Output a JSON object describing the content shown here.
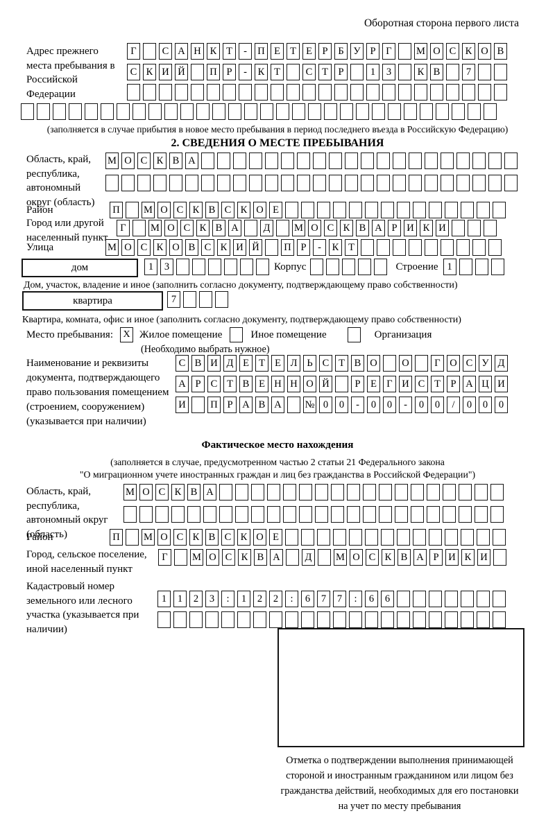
{
  "header": {
    "page_side_note": "Оборотная сторона первого листа"
  },
  "prev_address": {
    "label": "Адрес прежнего места пребывания в Российской Федерации",
    "rows": [
      [
        "Г",
        "",
        "С",
        "А",
        "Н",
        "К",
        "Т",
        "-",
        "П",
        "Е",
        "Т",
        "Е",
        "Р",
        "Б",
        "У",
        "Р",
        "Г",
        "",
        "М",
        "О",
        "С",
        "К",
        "О",
        "В"
      ],
      [
        "С",
        "К",
        "И",
        "Й",
        "",
        "П",
        "Р",
        "-",
        "К",
        "Т",
        "",
        "С",
        "Т",
        "Р",
        "",
        "1",
        "3",
        "",
        "К",
        "В",
        "",
        "7",
        "",
        ""
      ],
      [
        "",
        "",
        "",
        "",
        "",
        "",
        "",
        "",
        "",
        "",
        "",
        "",
        "",
        "",
        "",
        "",
        "",
        "",
        "",
        "",
        "",
        "",
        "",
        ""
      ],
      [
        "",
        "",
        "",
        "",
        "",
        "",
        "",
        "",
        "",
        "",
        "",
        "",
        "",
        "",
        "",
        "",
        "",
        "",
        "",
        "",
        "",
        "",
        "",
        "",
        "",
        "",
        "",
        "",
        "",
        ""
      ]
    ],
    "note": "(заполняется в случае прибытия в новое место пребывания в период последнего въезда в Российскую Федерацию)"
  },
  "section2": {
    "title": "2. СВЕДЕНИЯ О МЕСТЕ ПРЕБЫВАНИЯ",
    "region": {
      "label": "Область, край, республика, автономный округ (область)",
      "rows": [
        [
          "М",
          "О",
          "С",
          "К",
          "В",
          "А",
          "",
          "",
          "",
          "",
          "",
          "",
          "",
          "",
          "",
          "",
          "",
          "",
          "",
          "",
          "",
          "",
          "",
          "",
          "",
          ""
        ],
        [
          "",
          "",
          "",
          "",
          "",
          "",
          "",
          "",
          "",
          "",
          "",
          "",
          "",
          "",
          "",
          "",
          "",
          "",
          "",
          "",
          "",
          "",
          "",
          "",
          "",
          ""
        ]
      ]
    },
    "district": {
      "label": "Район",
      "cells": [
        "П",
        "",
        "М",
        "О",
        "С",
        "К",
        "В",
        "С",
        "К",
        "О",
        "Е",
        "",
        "",
        "",
        "",
        "",
        "",
        "",
        "",
        "",
        "",
        "",
        "",
        "",
        ""
      ]
    },
    "city": {
      "label": "Город или другой населенный пункт",
      "cells": [
        "Г",
        "",
        "М",
        "О",
        "С",
        "К",
        "В",
        "А",
        "",
        "Д",
        "",
        "М",
        "О",
        "С",
        "К",
        "В",
        "А",
        "Р",
        "И",
        "К",
        "И",
        "",
        "",
        ""
      ]
    },
    "street": {
      "label": "Улица",
      "cells": [
        "М",
        "О",
        "С",
        "К",
        "О",
        "В",
        "С",
        "К",
        "И",
        "Й",
        "",
        "П",
        "Р",
        "-",
        "К",
        "Т",
        "",
        "",
        "",
        "",
        "",
        "",
        "",
        "",
        ""
      ]
    },
    "house": {
      "box_label": "дом",
      "cells": [
        "1",
        "3",
        "",
        "",
        "",
        "",
        "",
        ""
      ],
      "korpus_label": "Корпус",
      "korpus_cells": [
        "",
        "",
        "",
        "",
        ""
      ],
      "stroenie_label": "Строение",
      "stroenie_cells": [
        "1",
        "",
        "",
        ""
      ]
    },
    "house_note": "Дом, участок, владение и иное (заполнить согласно документу, подтверждающему право собственности)",
    "apartment": {
      "box_label": "квартира",
      "cells": [
        "7",
        "",
        "",
        ""
      ]
    },
    "apartment_note": "Квартира, комната, офис и иное (заполнить согласно документу, подтверждающему право собственности)",
    "stay_type": {
      "label": "Место пребывания:",
      "options": [
        {
          "label": "Жилое помещение",
          "mark": "X"
        },
        {
          "label": "Иное помещение",
          "mark": ""
        },
        {
          "label": "Организация",
          "mark": ""
        }
      ],
      "note": "(Необходимо выбрать нужное)"
    },
    "document": {
      "label": "Наименование и реквизиты документа, подтверждающего право пользования помещением (строением, сооружением) (указывается при наличии)",
      "rows": [
        [
          "С",
          "В",
          "И",
          "Д",
          "Е",
          "Т",
          "Е",
          "Л",
          "Ь",
          "С",
          "Т",
          "В",
          "О",
          "",
          "О",
          "",
          "Г",
          "О",
          "С",
          "У",
          "Д"
        ],
        [
          "А",
          "Р",
          "С",
          "Т",
          "В",
          "Е",
          "Н",
          "Н",
          "О",
          "Й",
          "",
          "Р",
          "Е",
          "Г",
          "И",
          "С",
          "Т",
          "Р",
          "А",
          "Ц",
          "И"
        ],
        [
          "И",
          "",
          "П",
          "Р",
          "А",
          "В",
          "А",
          "",
          "№",
          "0",
          "0",
          "-",
          "0",
          "0",
          "-",
          "0",
          "0",
          "/",
          "0",
          "0",
          "0"
        ]
      ]
    }
  },
  "actual_location": {
    "title": "Фактическое место нахождения",
    "note_line1": "(заполняется в случае, предусмотренном частью 2 статьи 21 Федерального закона",
    "note_line2": "\"О миграционном учете иностранных граждан и лиц без гражданства в Российской Федерации\")",
    "region": {
      "label": "Область, край, республика, автономный округ (область)",
      "rows": [
        [
          "М",
          "О",
          "С",
          "К",
          "В",
          "А",
          "",
          "",
          "",
          "",
          "",
          "",
          "",
          "",
          "",
          "",
          "",
          "",
          "",
          "",
          "",
          "",
          "",
          ""
        ],
        [
          "",
          "",
          "",
          "",
          "",
          "",
          "",
          "",
          "",
          "",
          "",
          "",
          "",
          "",
          "",
          "",
          "",
          "",
          "",
          "",
          "",
          "",
          "",
          ""
        ]
      ]
    },
    "district": {
      "label": "Район",
      "cells": [
        "П",
        "",
        "М",
        "О",
        "С",
        "К",
        "В",
        "С",
        "К",
        "О",
        "Е",
        "",
        "",
        "",
        "",
        "",
        "",
        "",
        "",
        "",
        "",
        "",
        "",
        "",
        ""
      ]
    },
    "city": {
      "label": "Город, сельское поселение, иной населенный пункт",
      "cells": [
        "Г",
        "",
        "М",
        "О",
        "С",
        "К",
        "В",
        "А",
        "",
        "Д",
        "",
        "М",
        "О",
        "С",
        "К",
        "В",
        "А",
        "Р",
        "И",
        "К",
        "И",
        ""
      ]
    },
    "cadastral": {
      "label": "Кадастровый номер земельного или лесного участка (указывается при наличии)",
      "rows": [
        [
          "1",
          "1",
          "2",
          "3",
          ":",
          "1",
          "2",
          "2",
          ":",
          "6",
          "7",
          "7",
          ":",
          "6",
          "6",
          "",
          "",
          "",
          "",
          "",
          "",
          ""
        ],
        [
          "",
          "",
          "",
          "",
          "",
          "",
          "",
          "",
          "",
          "",
          "",
          "",
          "",
          "",
          "",
          "",
          "",
          "",
          "",
          "",
          "",
          ""
        ]
      ]
    },
    "stamp_caption_lines": [
      "Отметка о подтверждении выполнения принимающей",
      "стороной и иностранным гражданином или лицом без",
      "гражданства действий, необходимых для его постановки",
      "на учет по месту пребывания"
    ]
  }
}
